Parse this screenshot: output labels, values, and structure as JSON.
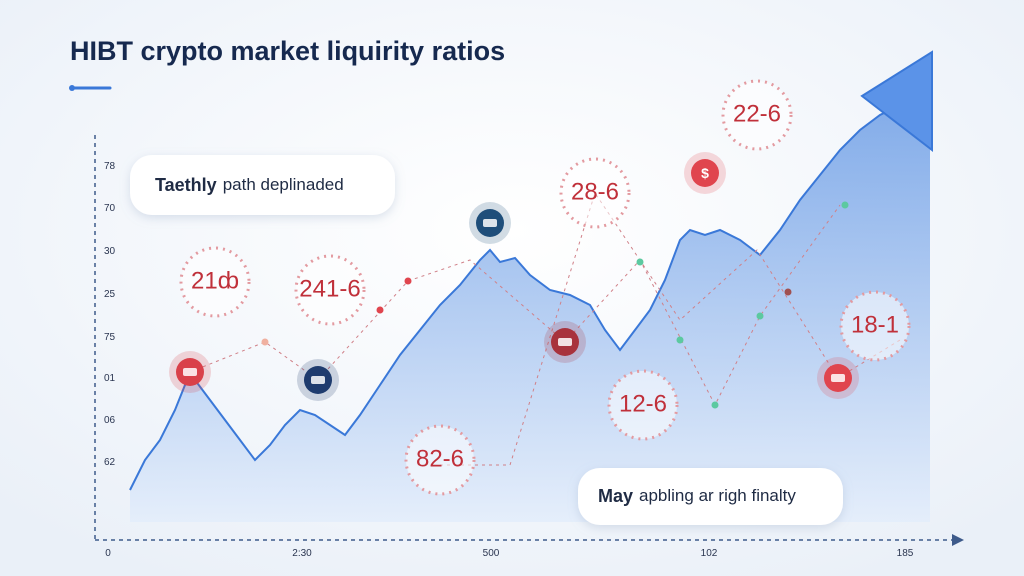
{
  "header": {
    "title": "HIBT crypto market liquirity ratios"
  },
  "y_labels": [
    "78",
    "70",
    "30",
    "25",
    "75",
    "01",
    "06",
    "62"
  ],
  "x_labels": [
    "0",
    "2:30",
    "500",
    "102",
    "185"
  ],
  "callouts": [
    {
      "bold": "Taethly",
      "text": "path deplinaded"
    },
    {
      "bold": "May",
      "text": "apbling ar righ finalty"
    }
  ],
  "bubbles": [
    "21ȸ",
    "241-6",
    "28-6",
    "22-6",
    "18-1",
    "12-6",
    "82-6"
  ],
  "icons": [
    "$"
  ]
}
